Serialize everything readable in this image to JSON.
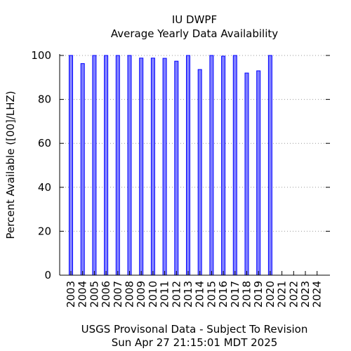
{
  "chart_data": {
    "type": "bar",
    "title": "IU DWPF",
    "subtitle": "Average Yearly Data Availability",
    "xlabel": "USGS Provisonal Data - Subject To Revision",
    "timestamp": "Sun Apr 27 21:15:01 MDT 2025",
    "ylabel": "Percent Available ([00]/LHZ)",
    "ylim": [
      0,
      100
    ],
    "yticks": [
      "0",
      "20",
      "40",
      "60",
      "80",
      "100"
    ],
    "grid": "horizontal-dotted",
    "categories": [
      "2003",
      "2004",
      "2005",
      "2006",
      "2007",
      "2008",
      "2009",
      "2010",
      "2011",
      "2012",
      "2013",
      "2014",
      "2015",
      "2016",
      "2017",
      "2018",
      "2019",
      "2020",
      "2021",
      "2022",
      "2023",
      "2024"
    ],
    "values": [
      100,
      96.3,
      100,
      100,
      100,
      100,
      98.8,
      98.8,
      98.7,
      97.4,
      100,
      93.6,
      100,
      99.7,
      100,
      92.0,
      93.0,
      100,
      0,
      0,
      0,
      0
    ],
    "colors": {
      "bar_fill": "#8080ff",
      "bar_stroke": "#0000ff",
      "axis": "#000000",
      "grid": "#999999"
    }
  }
}
